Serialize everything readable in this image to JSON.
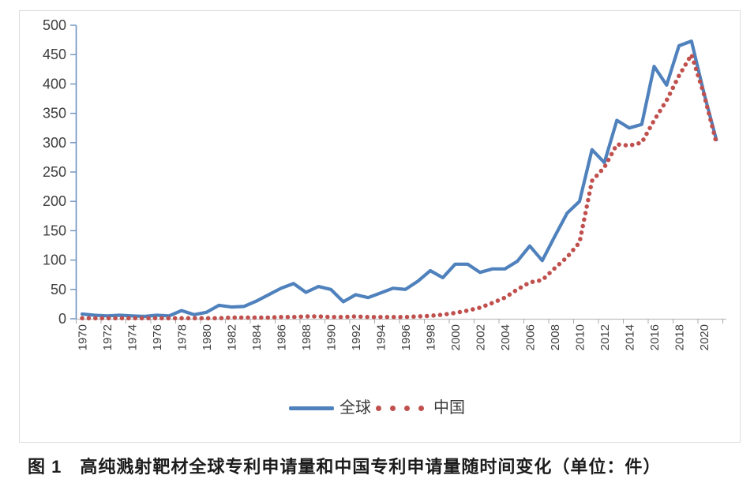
{
  "figure": {
    "caption": "图 1　高纯溅射靶材全球专利申请量和中国专利申请量随时间变化（单位：件）"
  },
  "legend": {
    "items": [
      {
        "label": "全球",
        "swatch": "solid-line"
      },
      {
        "label": "中国",
        "swatch": "round-dots"
      }
    ]
  },
  "colors": {
    "global": "#4f81bd",
    "china": "#c0504d",
    "y_axis_line": "#6b91bf",
    "x_axis_line": "#bfbfbf",
    "tick_text": "#3f3f3f",
    "frame": "#dcdcdc"
  },
  "chart_data": {
    "type": "line",
    "title": "",
    "xlabel": "",
    "ylabel": "",
    "ylim": [
      0,
      500
    ],
    "y_ticks": [
      0,
      50,
      100,
      150,
      200,
      250,
      300,
      350,
      400,
      450,
      500
    ],
    "grid": false,
    "legend_position": "bottom",
    "x": [
      1970,
      1971,
      1972,
      1973,
      1974,
      1975,
      1976,
      1977,
      1978,
      1979,
      1980,
      1981,
      1982,
      1983,
      1984,
      1985,
      1986,
      1987,
      1988,
      1989,
      1990,
      1991,
      1992,
      1993,
      1994,
      1995,
      1996,
      1997,
      1998,
      1999,
      2000,
      2001,
      2002,
      2003,
      2004,
      2005,
      2006,
      2007,
      2008,
      2009,
      2010,
      2011,
      2012,
      2013,
      2014,
      2015,
      2016,
      2017,
      2018,
      2019,
      2020,
      2021
    ],
    "x_tick_labels": [
      "1970",
      "1972",
      "1974",
      "1976",
      "1978",
      "1980",
      "1982",
      "1984",
      "1986",
      "1988",
      "1990",
      "1992",
      "1994",
      "1996",
      "1998",
      "2000",
      "2002",
      "2004",
      "2006",
      "2008",
      "2010",
      "2012",
      "2014",
      "2016",
      "2018",
      "2020"
    ],
    "series": [
      {
        "name": "全球",
        "color": "#4f81bd",
        "style": "solid",
        "values": [
          8,
          6,
          5,
          6,
          5,
          4,
          6,
          5,
          14,
          7,
          11,
          23,
          20,
          21,
          30,
          41,
          52,
          60,
          45,
          55,
          50,
          29,
          41,
          36,
          44,
          52,
          50,
          64,
          82,
          70,
          93,
          93,
          79,
          85,
          85,
          98,
          124,
          99,
          140,
          180,
          200,
          288,
          266,
          338,
          325,
          331,
          430,
          398,
          465,
          473,
          385,
          305
        ]
      },
      {
        "name": "中国",
        "color": "#c0504d",
        "style": "dotted",
        "values": [
          1,
          1,
          1,
          1,
          1,
          1,
          1,
          1,
          1,
          1,
          1,
          1,
          2,
          2,
          2,
          2,
          3,
          3,
          4,
          4,
          3,
          3,
          4,
          3,
          3,
          3,
          3,
          4,
          5,
          7,
          10,
          14,
          19,
          27,
          36,
          50,
          62,
          66,
          86,
          105,
          130,
          235,
          258,
          297,
          295,
          300,
          338,
          372,
          414,
          450,
          383,
          300
        ]
      }
    ]
  }
}
